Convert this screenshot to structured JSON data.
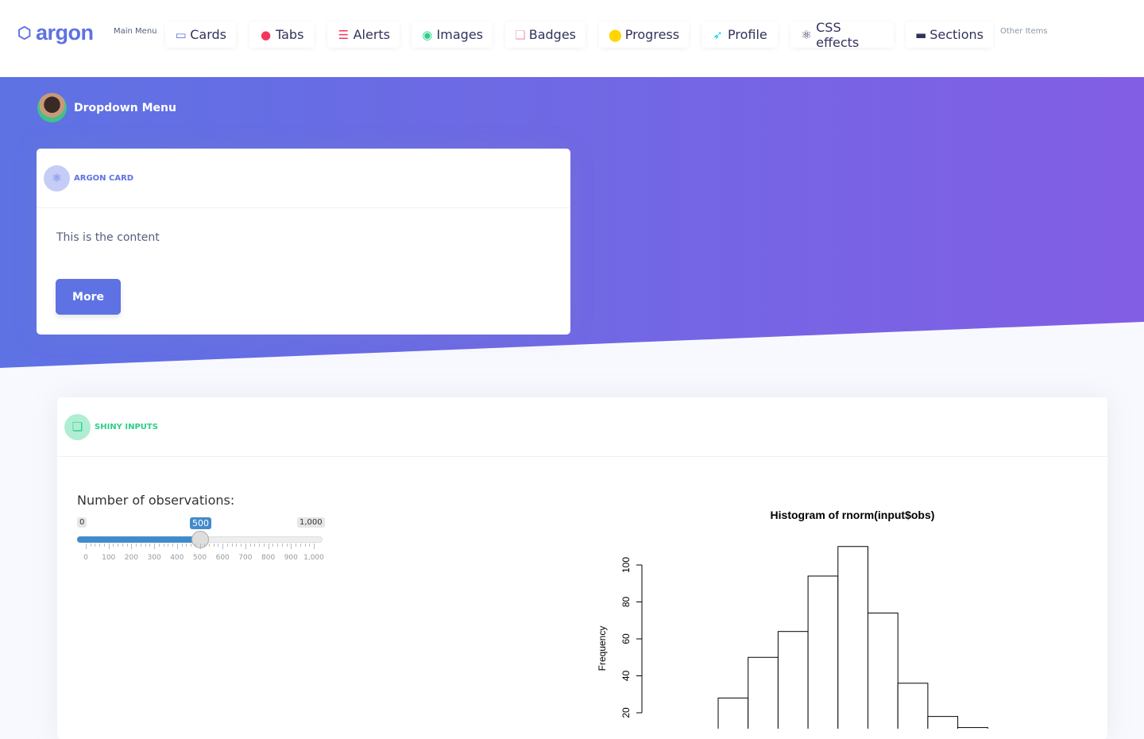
{
  "nav": {
    "brand": "argon",
    "main_menu_label": "Main Menu",
    "other_items_label": "Other Items",
    "items": [
      {
        "label": "Cards",
        "icon": "monitor-icon",
        "color": "#5e72e4"
      },
      {
        "label": "Tabs",
        "icon": "planet-icon",
        "color": "#f5365c"
      },
      {
        "label": "Alerts",
        "icon": "list-icon",
        "color": "#f5365c"
      },
      {
        "label": "Images",
        "icon": "user-circle-icon",
        "color": "#2dce89"
      },
      {
        "label": "Badges",
        "icon": "badge-icon",
        "color": "#f3a4b5"
      },
      {
        "label": "Progress",
        "icon": "pin-icon",
        "color": "#ffd600"
      },
      {
        "label": "Profile",
        "icon": "rocket-icon",
        "color": "#11cdef"
      },
      {
        "label": "CSS effects",
        "icon": "atom-icon",
        "color": "#32325d"
      },
      {
        "label": "Sections",
        "icon": "card-icon",
        "color": "#32325d"
      }
    ]
  },
  "hero": {
    "dropdown_label": "Dropdown Menu",
    "gradient": [
      "#5e72e4",
      "#825ee4"
    ]
  },
  "argon_card": {
    "title": "ARGON CARD",
    "content": "This is the content",
    "button": "More"
  },
  "shiny_card": {
    "title": "SHINY INPUTS",
    "slider": {
      "label": "Number of observations:",
      "min": "0",
      "max": "1,000",
      "value": "500",
      "value_fraction": 0.5,
      "ticks": [
        "0",
        "100",
        "200",
        "300",
        "400",
        "500",
        "600",
        "700",
        "800",
        "900",
        "1,000"
      ]
    }
  },
  "chart_data": {
    "type": "bar",
    "title": "Histogram of rnorm(input$obs)",
    "ylabel": "Frequency",
    "yticks": [
      "20",
      "40",
      "60",
      "80",
      "100"
    ],
    "values": [
      28,
      50,
      64,
      94,
      110,
      74,
      36,
      18,
      12
    ],
    "grid": false
  }
}
